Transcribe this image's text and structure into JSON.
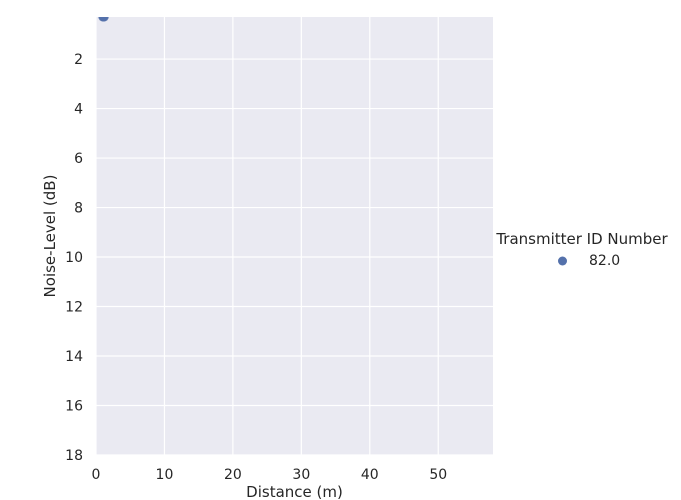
{
  "chart_data": {
    "type": "scatter",
    "xlabel": "Distance (m)",
    "ylabel": "Noise-Level (dB)",
    "xlim": [
      0,
      58
    ],
    "ylim": [
      0.3,
      18
    ],
    "y_inverted": true,
    "xticks": [
      0,
      10,
      20,
      30,
      40,
      50
    ],
    "yticks": [
      2,
      4,
      6,
      8,
      10,
      12,
      14,
      16,
      18
    ],
    "grid": true,
    "legend": {
      "title": "Transmitter ID Number",
      "placement": "right",
      "entries": [
        "82.0"
      ]
    },
    "series": [
      {
        "name": "82.0",
        "color": "#5471ab",
        "points": [
          {
            "x": 1.0,
            "y": 0.3
          },
          {
            "x": 1.1,
            "y": 0.3
          },
          {
            "x": 1.2,
            "y": 0.3
          }
        ]
      }
    ],
    "background": "#eaeaf2",
    "grid_color": "#ffffff"
  }
}
